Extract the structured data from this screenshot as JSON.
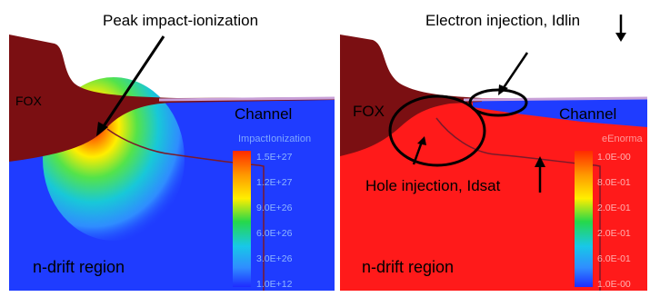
{
  "left_panel": {
    "title": "Peak impact-ionization",
    "fox_label": "FOX",
    "channel_label": "Channel",
    "region_label": "n-drift region",
    "legend": {
      "title": "ImpactIonization",
      "ticks": [
        "1.5E+27",
        "1.2E+27",
        "9.0E+26",
        "6.0E+26",
        "3.0E+26",
        "1.0E+12"
      ]
    }
  },
  "right_panel": {
    "electron_label": "Electron injection, Idlin",
    "hole_label": "Hole injection, Idsat",
    "fox_label": "FOX",
    "channel_label": "Channel",
    "region_label": "n-drift region",
    "legend": {
      "title": "eEnorma",
      "ticks": [
        "1.0E-00",
        "8.0E-01",
        "2.0E-01",
        "2.0E-01",
        "6.0E-01",
        "1.0E-00"
      ]
    }
  },
  "colors": {
    "fox": "#7b0f12",
    "substrate_left": "#1f3cff",
    "substrate_right": "#ff1a1a",
    "surface_line": "#c8a0d8"
  }
}
